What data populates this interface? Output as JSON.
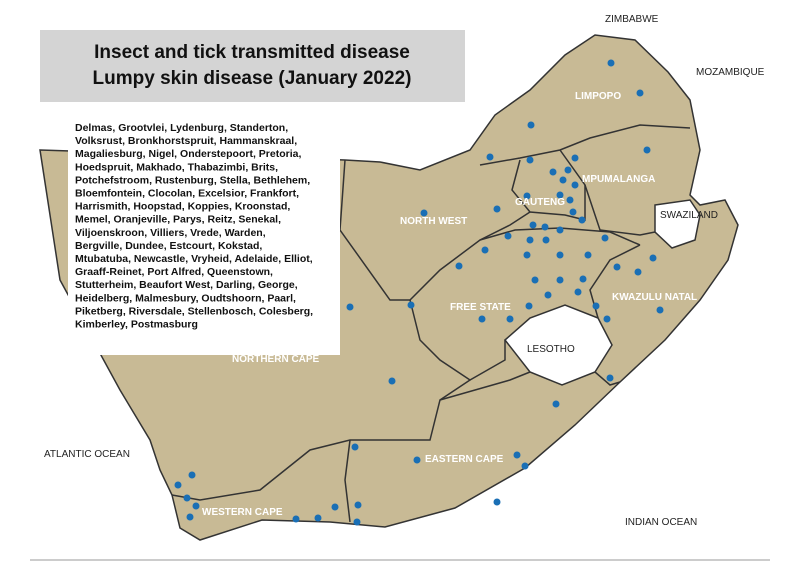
{
  "title": [
    "Insect and tick transmitted disease",
    "Lumpy skin disease (January 2022)"
  ],
  "towns": [
    "Delmas, Grootvlei, Lydenburg, Standerton,",
    "Volksrust, Bronkhorstspruit, Hammanskraal,",
    "Magaliesburg, Nigel, Onderstepoort, Pretoria,",
    "Hoedspruit, Makhado, Thabazimbi, Brits,",
    "Potchefstroom, Rustenburg, Stella, Bethlehem,",
    "Bloemfontein, Clocolan, Excelsior, Frankfort,",
    "Harrismith, Hoopstad, Koppies, Kroonstad,",
    "Memel, Oranjeville, Parys, Reitz, Senekal,",
    "Viljoenskroon, Villiers, Vrede, Warden,",
    "Bergville,  Dundee, Estcourt,  Kokstad,",
    "Mtubatuba, Newcastle, Vryheid, Adelaide, Elliot,",
    "Graaff-Reinet, Port Alfred, Queenstown,",
    "Stutterheim, Beaufort West, Darling, George,",
    "Heidelberg, Malmesbury, Oudtshoorn, Paarl,",
    "Piketberg, Riversdale, Stellenbosch, Colesberg,",
    "Kimberley, Postmasburg"
  ],
  "provinces": [
    "LIMPOPO",
    "MPUMALANGA",
    "GAUTENG",
    "NORTH WEST",
    "FREE STATE",
    "KWAZULU NATAL",
    "NORTHERN CAPE",
    "EASTERN CAPE",
    "WESTERN CAPE"
  ],
  "countries": [
    "ZIMBABWE",
    "MOZAMBIQUE",
    "SWAZILAND",
    "LESOTHO"
  ],
  "oceans": [
    "ATLANTIC OCEAN",
    "INDIAN OCEAN"
  ]
}
